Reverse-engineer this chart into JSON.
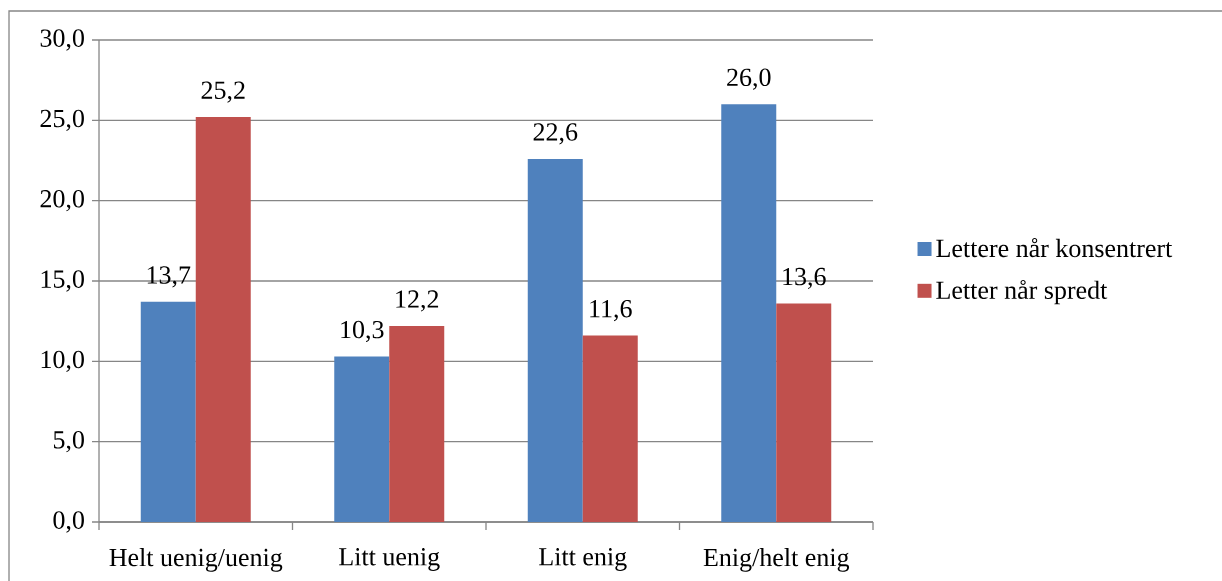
{
  "chart_data": {
    "type": "bar",
    "categories": [
      "Helt uenig/uenig",
      "Litt uenig",
      "Litt enig",
      "Enig/helt enig"
    ],
    "series": [
      {
        "name": "Lettere når konsentrert",
        "color": "#4f81bd",
        "values": [
          13.7,
          10.3,
          22.6,
          26.0
        ],
        "value_labels": [
          "13,7",
          "10,3",
          "22,6",
          "26,0"
        ]
      },
      {
        "name": "Letter når spredt",
        "color": "#c0504d",
        "values": [
          25.2,
          12.2,
          11.6,
          13.6
        ],
        "value_labels": [
          "25,2",
          "12,2",
          "11,6",
          "13,6"
        ]
      }
    ],
    "ylim": [
      0,
      30
    ],
    "yticks": [
      {
        "value": 0,
        "label": "0,0"
      },
      {
        "value": 5,
        "label": "5,0"
      },
      {
        "value": 10,
        "label": "10,0"
      },
      {
        "value": 15,
        "label": "15,0"
      },
      {
        "value": 20,
        "label": "20,0"
      },
      {
        "value": 25,
        "label": "25,0"
      },
      {
        "value": 30,
        "label": "30,0"
      }
    ],
    "grid": "y",
    "legend": "right"
  }
}
